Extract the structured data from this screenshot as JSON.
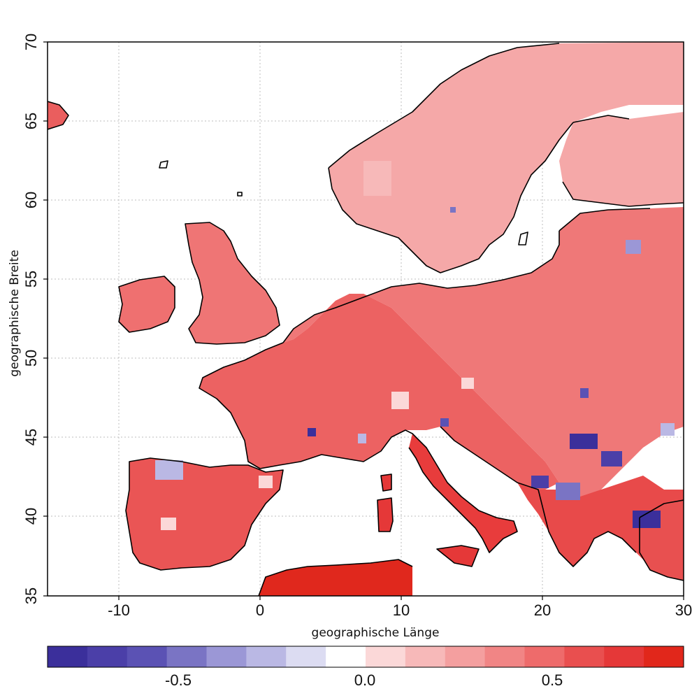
{
  "map": {
    "xlabel": "geographische Länge",
    "ylabel": "geographische Breite",
    "lon_range": [
      -15,
      30
    ],
    "lat_range": [
      35,
      70
    ],
    "x_ticks": [
      "-10",
      "0",
      "10",
      "20",
      "30"
    ],
    "y_ticks": [
      "35",
      "40",
      "45",
      "50",
      "55",
      "60",
      "65",
      "70"
    ],
    "grid": "dotted",
    "land_base_color": "#f08080",
    "coast_color": "#000000"
  },
  "colorbar": {
    "colors": [
      "#3b2f9b",
      "#4b3fa8",
      "#5b52b4",
      "#7a74c4",
      "#9b97d6",
      "#bab8e4",
      "#dcdcf2",
      "#ffffff",
      "#fbd8d8",
      "#f7b9b9",
      "#f49f9f",
      "#f18585",
      "#ee6b6b",
      "#e94f4f",
      "#e53838",
      "#e1271b"
    ],
    "tick_labels": [
      "-0.5",
      "0.0",
      "0.5"
    ]
  }
}
